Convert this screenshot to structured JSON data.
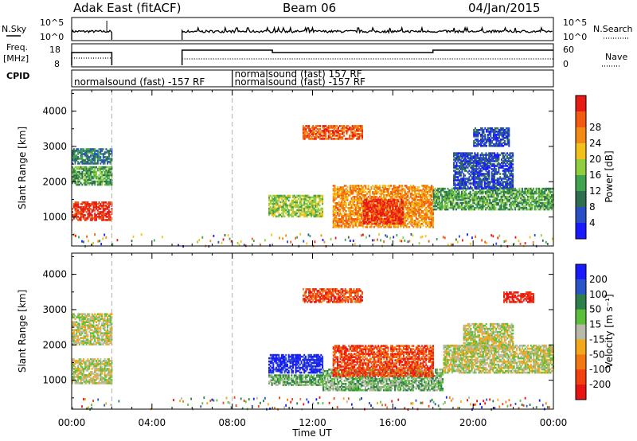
{
  "header": {
    "station": "Adak East (fitACF)",
    "beam": "Beam 06",
    "date": "04/Jan/2015"
  },
  "top_panels": {
    "nsky_label": "N.Sky",
    "nsky_ticks": [
      "10^5",
      "10^0"
    ],
    "nsearch_label": "N.Search",
    "freq_label_line1": "Freq.",
    "freq_label_line2": "[MHz]",
    "freq_ticks": [
      "18",
      "8"
    ],
    "nave_label": "Nave",
    "nave_ticks": [
      "60",
      "0"
    ],
    "cpid_label": "CPID",
    "cpid_segments": [
      {
        "text": "normalsound (fast) -157 RF",
        "start_h": 0.0,
        "end_h": 8.0,
        "row": 1
      },
      {
        "text": "normalsound (fast) 157 RF",
        "start_h": 8.0,
        "end_h": 10.0,
        "row": 0
      },
      {
        "text": "normalsound (fast) -157 RF",
        "start_h": 8.0,
        "end_h": 24.0,
        "row": 1
      }
    ]
  },
  "colors": {
    "power": [
      "#1a1aff",
      "#2a4fc4",
      "#2e6f4f",
      "#3fa34f",
      "#8fce3f",
      "#f2c21a",
      "#f28a14",
      "#f25a10",
      "#e81a14"
    ],
    "velocity": [
      "#1a1aff",
      "#2a55c8",
      "#2e7f4a",
      "#5cbf3a",
      "#b9b9a8",
      "#f2a818",
      "#f27812",
      "#f24010",
      "#e81414"
    ],
    "data_gap": "#ffffff"
  },
  "chart_data": [
    {
      "type": "heatmap",
      "name": "power",
      "xlabel": "",
      "ylabel": "Slant Range [km]",
      "xlim_hours": [
        0,
        24
      ],
      "ylim": [
        180,
        4600
      ],
      "yticks": [
        "1000",
        "2000",
        "3000",
        "4000"
      ],
      "colorbar_label": "Power [dB]",
      "colorbar_ticks": [
        "4",
        "8",
        "12",
        "16",
        "20",
        "24",
        "28"
      ],
      "data_gap_hours": [
        2.0,
        5.5
      ],
      "dashed_lines_hours": [
        2.0,
        8.0
      ],
      "regions": [
        {
          "t": [
            0.0,
            2.0
          ],
          "r": [
            900,
            1400
          ],
          "level": 8
        },
        {
          "t": [
            0.0,
            2.0
          ],
          "r": [
            1900,
            2400
          ],
          "level": 3
        },
        {
          "t": [
            0.0,
            2.0
          ],
          "r": [
            2500,
            2950
          ],
          "level": 2
        },
        {
          "t": [
            9.8,
            12.5
          ],
          "r": [
            1000,
            1600
          ],
          "level": 4
        },
        {
          "t": [
            13.0,
            18.0
          ],
          "r": [
            700,
            1900
          ],
          "level": 6
        },
        {
          "t": [
            14.5,
            16.5
          ],
          "r": [
            800,
            1500
          ],
          "level": 8
        },
        {
          "t": [
            18.0,
            24.0
          ],
          "r": [
            1200,
            1800
          ],
          "level": 3
        },
        {
          "t": [
            19.0,
            22.0
          ],
          "r": [
            1800,
            2800
          ],
          "level": 1
        },
        {
          "t": [
            20.0,
            21.8
          ],
          "r": [
            3000,
            3500
          ],
          "level": 1
        },
        {
          "t": [
            11.5,
            14.5
          ],
          "r": [
            3200,
            3600
          ],
          "level": 7
        }
      ]
    },
    {
      "type": "heatmap",
      "name": "velocity",
      "xlabel": "Time UT",
      "ylabel": "Slant Range [km]",
      "xlim_hours": [
        0,
        24
      ],
      "ylim": [
        180,
        4600
      ],
      "yticks": [
        "1000",
        "2000",
        "3000",
        "4000"
      ],
      "xticks": [
        "00:00",
        "04:00",
        "08:00",
        "12:00",
        "16:00",
        "20:00",
        "00:00"
      ],
      "colorbar_label": "Velocity [m s⁻¹]",
      "colorbar_ticks": [
        "200",
        "100",
        "50",
        "15",
        "-15",
        "-50",
        "-100",
        "-200"
      ],
      "data_gap_hours": [
        2.0,
        5.5
      ],
      "dashed_lines_hours": [
        2.0,
        8.0
      ],
      "regions": [
        {
          "t": [
            0.0,
            2.0
          ],
          "r": [
            900,
            1600
          ],
          "level": 4
        },
        {
          "t": [
            0.0,
            2.0
          ],
          "r": [
            2000,
            2900
          ],
          "level": 4
        },
        {
          "t": [
            9.8,
            12.5
          ],
          "r": [
            1200,
            1700
          ],
          "level": 0
        },
        {
          "t": [
            9.8,
            12.5
          ],
          "r": [
            850,
            1150
          ],
          "level": 3
        },
        {
          "t": [
            12.5,
            18.5
          ],
          "r": [
            700,
            1300
          ],
          "level": 3
        },
        {
          "t": [
            13.0,
            18.0
          ],
          "r": [
            1100,
            2000
          ],
          "level": 7
        },
        {
          "t": [
            18.5,
            24.0
          ],
          "r": [
            1200,
            2000
          ],
          "level": 4
        },
        {
          "t": [
            19.5,
            22.0
          ],
          "r": [
            1900,
            2600
          ],
          "level": 4
        },
        {
          "t": [
            21.5,
            23.0
          ],
          "r": [
            3200,
            3500
          ],
          "level": 8
        },
        {
          "t": [
            11.5,
            14.5
          ],
          "r": [
            3200,
            3600
          ],
          "level": 7
        }
      ]
    }
  ]
}
